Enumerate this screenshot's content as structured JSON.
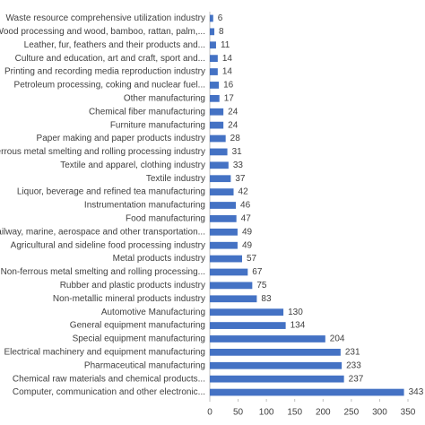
{
  "chart_data": {
    "type": "hbar",
    "color": "#4472c4",
    "categories": [
      "Waste resource comprehensive utilization industry",
      "Wood processing and wood, bamboo, rattan, palm,...",
      "Leather, fur, feathers and their products and...",
      "Culture and education, art and craft, sport and...",
      "Printing and recording media reproduction industry",
      "Petroleum processing, coking and nuclear fuel...",
      "Other manufacturing",
      "Chemical fiber manufacturing",
      "Furniture manufacturing",
      "Paper making and paper products industry",
      "Ferrous metal smelting and rolling processing industry",
      "Textile and apparel, clothing industry",
      "Textile industry",
      "Liquor, beverage and refined tea manufacturing",
      "Instrumentation manufacturing",
      "Food manufacturing",
      "Railway, marine, aerospace and other transportation...",
      "Agricultural and sideline food processing industry",
      "Metal products industry",
      "Non-ferrous metal smelting and rolling processing...",
      "Rubber and plastic products industry",
      "Non-metallic mineral products industry",
      "Automotive Manufacturing",
      "General equipment manufacturing",
      "Special equipment manufacturing",
      "Electrical machinery and equipment manufacturing",
      "Pharmaceutical manufacturing",
      "Chemical raw materials and chemical products...",
      "Computer, communication and other electronic..."
    ],
    "values": [
      6,
      8,
      11,
      14,
      14,
      16,
      17,
      24,
      24,
      28,
      31,
      33,
      37,
      42,
      46,
      47,
      49,
      49,
      57,
      67,
      75,
      83,
      130,
      134,
      204,
      231,
      233,
      237,
      343
    ],
    "xlim": [
      0,
      350
    ],
    "xticks": [
      0,
      50,
      100,
      150,
      200,
      250,
      300,
      350
    ]
  }
}
